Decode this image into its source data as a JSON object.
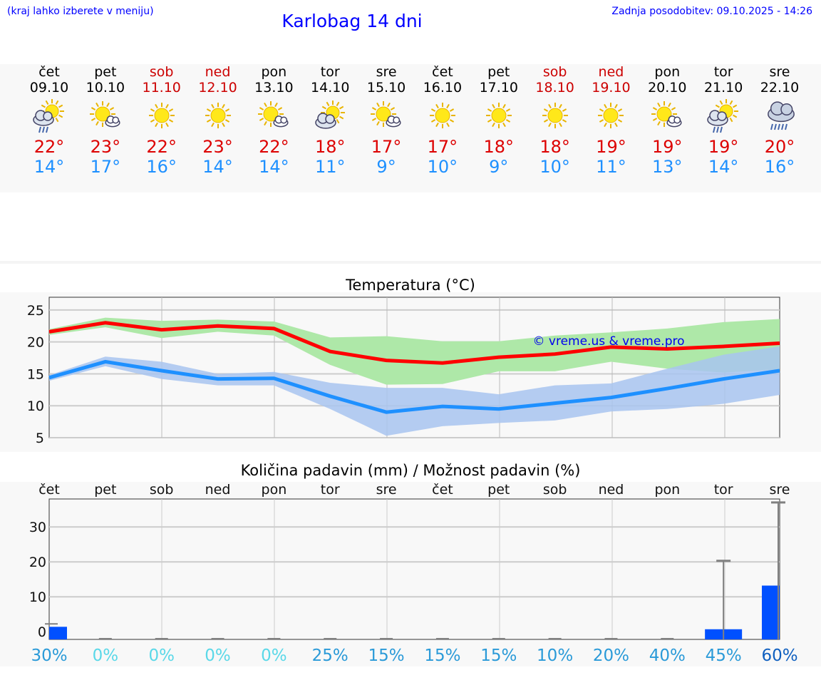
{
  "header": {
    "hint": "(kraj lahko izberete v meniju)",
    "title": "Karlobag 14 dni",
    "updated": "Zadnja posodobitev: 09.10.2025 - 14:26"
  },
  "days": [
    {
      "name": "čet",
      "date": "09.10",
      "hi": "22°",
      "lo": "14°",
      "icon": "sun-cloud-rain",
      "weekend": false
    },
    {
      "name": "pet",
      "date": "10.10",
      "hi": "23°",
      "lo": "17°",
      "icon": "sun-small-cloud",
      "weekend": false
    },
    {
      "name": "sob",
      "date": "11.10",
      "hi": "22°",
      "lo": "16°",
      "icon": "sun",
      "weekend": true
    },
    {
      "name": "ned",
      "date": "12.10",
      "hi": "23°",
      "lo": "14°",
      "icon": "sun",
      "weekend": true
    },
    {
      "name": "pon",
      "date": "13.10",
      "hi": "22°",
      "lo": "14°",
      "icon": "sun-small-cloud",
      "weekend": false
    },
    {
      "name": "tor",
      "date": "14.10",
      "hi": "18°",
      "lo": "11°",
      "icon": "sun-cloud",
      "weekend": false
    },
    {
      "name": "sre",
      "date": "15.10",
      "hi": "17°",
      "lo": "9°",
      "icon": "sun-small-cloud",
      "weekend": false
    },
    {
      "name": "čet",
      "date": "16.10",
      "hi": "17°",
      "lo": "10°",
      "icon": "sun",
      "weekend": false
    },
    {
      "name": "pet",
      "date": "17.10",
      "hi": "18°",
      "lo": "9°",
      "icon": "sun",
      "weekend": false
    },
    {
      "name": "sob",
      "date": "18.10",
      "hi": "18°",
      "lo": "10°",
      "icon": "sun",
      "weekend": true
    },
    {
      "name": "ned",
      "date": "19.10",
      "hi": "19°",
      "lo": "11°",
      "icon": "sun",
      "weekend": true
    },
    {
      "name": "pon",
      "date": "20.10",
      "hi": "19°",
      "lo": "13°",
      "icon": "sun-small-cloud",
      "weekend": false
    },
    {
      "name": "tor",
      "date": "21.10",
      "hi": "19°",
      "lo": "14°",
      "icon": "sun-cloud-rain",
      "weekend": false
    },
    {
      "name": "sre",
      "date": "22.10",
      "hi": "20°",
      "lo": "16°",
      "icon": "cloud-rain",
      "weekend": false
    }
  ],
  "colors": {
    "max": "#ff0000",
    "min": "#1e90ff",
    "maxband": "#aee8a8",
    "minband": "#a8c4f0",
    "bar": "#0050ff"
  },
  "chart_data": [
    {
      "type": "line",
      "title": "Temperatura (°C)",
      "watermark": "© vreme.us & vreme.pro",
      "ylim": [
        5,
        27
      ],
      "yticks": [
        5,
        10,
        15,
        20,
        25
      ],
      "series": [
        {
          "name": "max",
          "values": [
            21.6,
            23,
            21.9,
            22.5,
            22.1,
            18.5,
            17.1,
            16.7,
            17.6,
            18.1,
            19.2,
            18.9,
            19.3,
            19.8
          ],
          "band_hi": [
            22,
            23.8,
            23.3,
            23.5,
            23.2,
            20.7,
            20.9,
            20.1,
            20.1,
            21,
            21.5,
            22.1,
            23.1,
            23.6
          ],
          "band_lo": [
            21.1,
            22.3,
            20.6,
            21.6,
            21,
            16.4,
            13.3,
            13.4,
            15.4,
            15.4,
            16.9,
            15.8,
            15.2,
            15.7
          ]
        },
        {
          "name": "min",
          "values": [
            14.4,
            16.9,
            15.5,
            14.2,
            14.3,
            11.5,
            9,
            9.9,
            9.5,
            10.4,
            11.3,
            12.7,
            14.2,
            15.5
          ],
          "band_hi": [
            14.8,
            17.7,
            16.9,
            15,
            15.3,
            13.6,
            12.8,
            12.8,
            11.8,
            13.2,
            13.5,
            15.8,
            18,
            19.3
          ],
          "band_lo": [
            13.9,
            16.2,
            14.2,
            13.2,
            13.2,
            9.5,
            5.3,
            6.8,
            7.3,
            7.7,
            9.1,
            9.5,
            10.3,
            11.7
          ]
        }
      ]
    },
    {
      "type": "bar",
      "title": "Količina padavin (mm) / Možnost padavin (%)",
      "ylim": [
        -2.2,
        38
      ],
      "yticks": [
        0,
        10,
        20,
        30
      ],
      "categories": [
        "čet",
        "pet",
        "sob",
        "ned",
        "pon",
        "tor",
        "sre",
        "čet",
        "pet",
        "sob",
        "ned",
        "pon",
        "tor",
        "sre"
      ],
      "values": [
        1.2,
        0,
        0,
        0,
        0,
        0,
        0,
        0,
        0,
        0,
        0,
        0,
        0.5,
        13
      ],
      "max_range": [
        0.2,
        0,
        0,
        0,
        0,
        0,
        0,
        0,
        0,
        0,
        0,
        0,
        20.3,
        37
      ],
      "probability": [
        "30%",
        "0%",
        "0%",
        "0%",
        "0%",
        "25%",
        "15%",
        "15%",
        "15%",
        "10%",
        "20%",
        "40%",
        "45%",
        "60%"
      ]
    }
  ]
}
